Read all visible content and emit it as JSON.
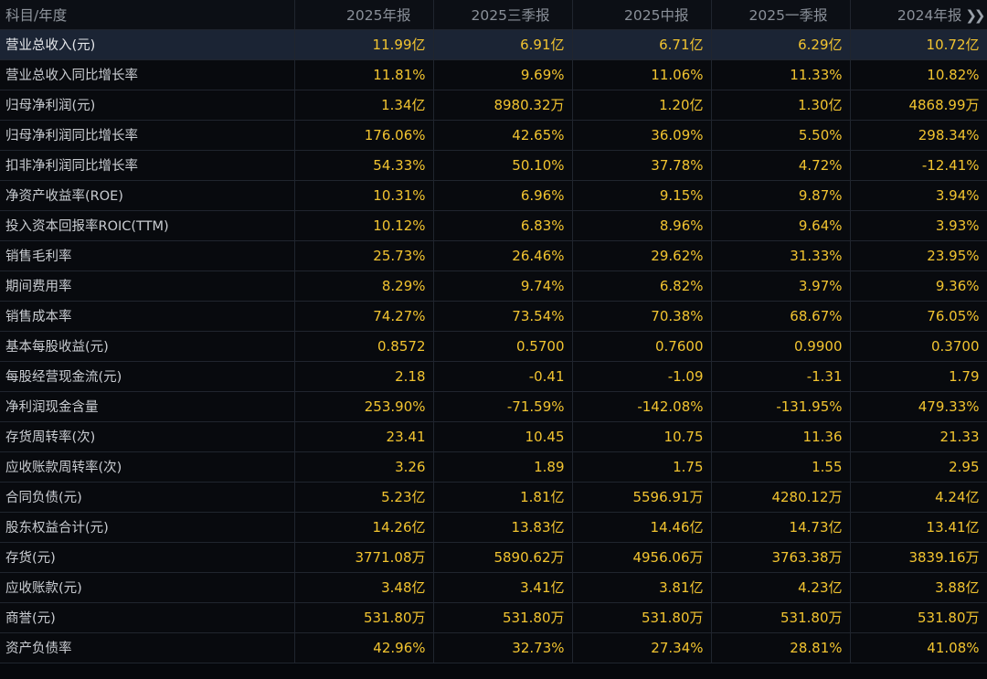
{
  "header": {
    "label": "科目/年度",
    "periods": [
      "2025年报",
      "2025三季报",
      "2025中报",
      "2025一季报",
      "2024年报"
    ],
    "more_icon": "double-chevron-right"
  },
  "rows": [
    {
      "label": "营业总收入(元)",
      "values": [
        "11.99亿",
        "6.91亿",
        "6.71亿",
        "6.29亿",
        "10.72亿"
      ]
    },
    {
      "label": "营业总收入同比增长率",
      "values": [
        "11.81%",
        "9.69%",
        "11.06%",
        "11.33%",
        "10.82%"
      ]
    },
    {
      "label": "归母净利润(元)",
      "values": [
        "1.34亿",
        "8980.32万",
        "1.20亿",
        "1.30亿",
        "4868.99万"
      ]
    },
    {
      "label": "归母净利润同比增长率",
      "values": [
        "176.06%",
        "42.65%",
        "36.09%",
        "5.50%",
        "298.34%"
      ]
    },
    {
      "label": "扣非净利润同比增长率",
      "values": [
        "54.33%",
        "50.10%",
        "37.78%",
        "4.72%",
        "-12.41%"
      ]
    },
    {
      "label": "净资产收益率(ROE)",
      "values": [
        "10.31%",
        "6.96%",
        "9.15%",
        "9.87%",
        "3.94%"
      ]
    },
    {
      "label": "投入资本回报率ROIC(TTM)",
      "values": [
        "10.12%",
        "6.83%",
        "8.96%",
        "9.64%",
        "3.93%"
      ]
    },
    {
      "label": "销售毛利率",
      "values": [
        "25.73%",
        "26.46%",
        "29.62%",
        "31.33%",
        "23.95%"
      ]
    },
    {
      "label": "期间费用率",
      "values": [
        "8.29%",
        "9.74%",
        "6.82%",
        "3.97%",
        "9.36%"
      ]
    },
    {
      "label": "销售成本率",
      "values": [
        "74.27%",
        "73.54%",
        "70.38%",
        "68.67%",
        "76.05%"
      ]
    },
    {
      "label": "基本每股收益(元)",
      "values": [
        "0.8572",
        "0.5700",
        "0.7600",
        "0.9900",
        "0.3700"
      ]
    },
    {
      "label": "每股经营现金流(元)",
      "values": [
        "2.18",
        "-0.41",
        "-1.09",
        "-1.31",
        "1.79"
      ]
    },
    {
      "label": "净利润现金含量",
      "values": [
        "253.90%",
        "-71.59%",
        "-142.08%",
        "-131.95%",
        "479.33%"
      ]
    },
    {
      "label": "存货周转率(次)",
      "values": [
        "23.41",
        "10.45",
        "10.75",
        "11.36",
        "21.33"
      ]
    },
    {
      "label": "应收账款周转率(次)",
      "values": [
        "3.26",
        "1.89",
        "1.75",
        "1.55",
        "2.95"
      ]
    },
    {
      "label": "合同负债(元)",
      "values": [
        "5.23亿",
        "1.81亿",
        "5596.91万",
        "4280.12万",
        "4.24亿"
      ]
    },
    {
      "label": "股东权益合计(元)",
      "values": [
        "14.26亿",
        "13.83亿",
        "14.46亿",
        "14.73亿",
        "13.41亿"
      ]
    },
    {
      "label": "存货(元)",
      "values": [
        "3771.08万",
        "5890.62万",
        "4956.06万",
        "3763.38万",
        "3839.16万"
      ]
    },
    {
      "label": "应收账款(元)",
      "values": [
        "3.48亿",
        "3.41亿",
        "3.81亿",
        "4.23亿",
        "3.88亿"
      ]
    },
    {
      "label": "商誉(元)",
      "values": [
        "531.80万",
        "531.80万",
        "531.80万",
        "531.80万",
        "531.80万"
      ]
    },
    {
      "label": "资产负债率",
      "values": [
        "42.96%",
        "32.73%",
        "27.34%",
        "28.81%",
        "41.08%"
      ]
    }
  ],
  "colors": {
    "background": "#06080c",
    "highlight_row": "#1b2434",
    "value_text": "#f2c430",
    "label_text": "#c9ccd1",
    "header_text": "#8a9099"
  }
}
